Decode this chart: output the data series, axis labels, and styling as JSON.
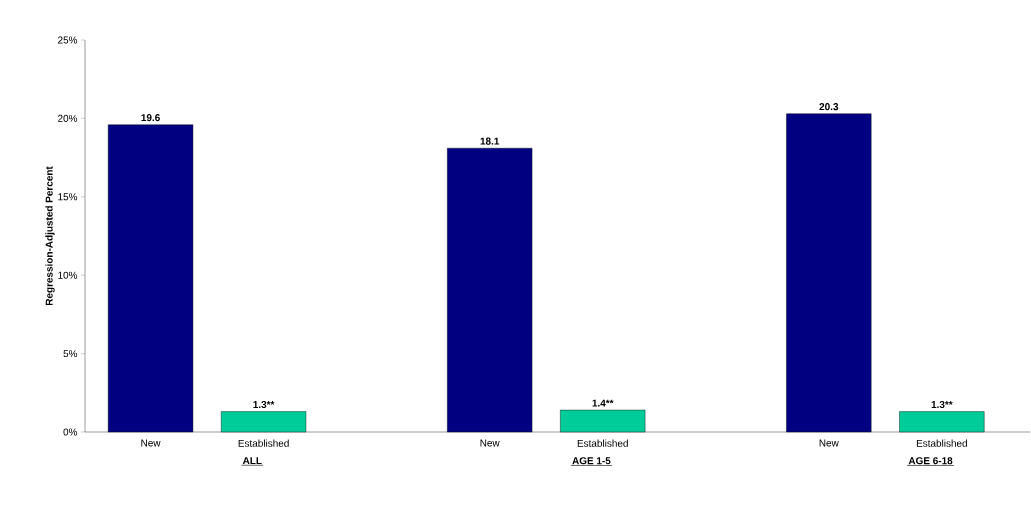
{
  "chart_data": {
    "type": "bar",
    "ylabel": "Regression-Adjusted Percent",
    "categories": [
      "New",
      "Established",
      null,
      "New",
      "Established",
      null,
      "New",
      "Established"
    ],
    "values": [
      19.6,
      1.3,
      null,
      18.1,
      1.4,
      null,
      20.3,
      1.3
    ],
    "value_labels": [
      "19.6",
      "1.3**",
      null,
      "18.1",
      "1.4**",
      null,
      "20.3",
      "1.3**"
    ],
    "colors": [
      "#000080",
      "#00cc99",
      null,
      "#000080",
      "#00cc99",
      null,
      "#000080",
      "#00cc99"
    ],
    "ylim": [
      0,
      25
    ],
    "yticks": [
      {
        "value": 0,
        "label": "0%"
      },
      {
        "value": 5,
        "label": "5%"
      },
      {
        "value": 10,
        "label": "10%"
      },
      {
        "value": 15,
        "label": "15%"
      },
      {
        "value": 20,
        "label": "20%"
      },
      {
        "value": 25,
        "label": "25%"
      }
    ],
    "annotations": [
      "ALL",
      "AGE 1-5",
      "AGE 6-18"
    ]
  }
}
